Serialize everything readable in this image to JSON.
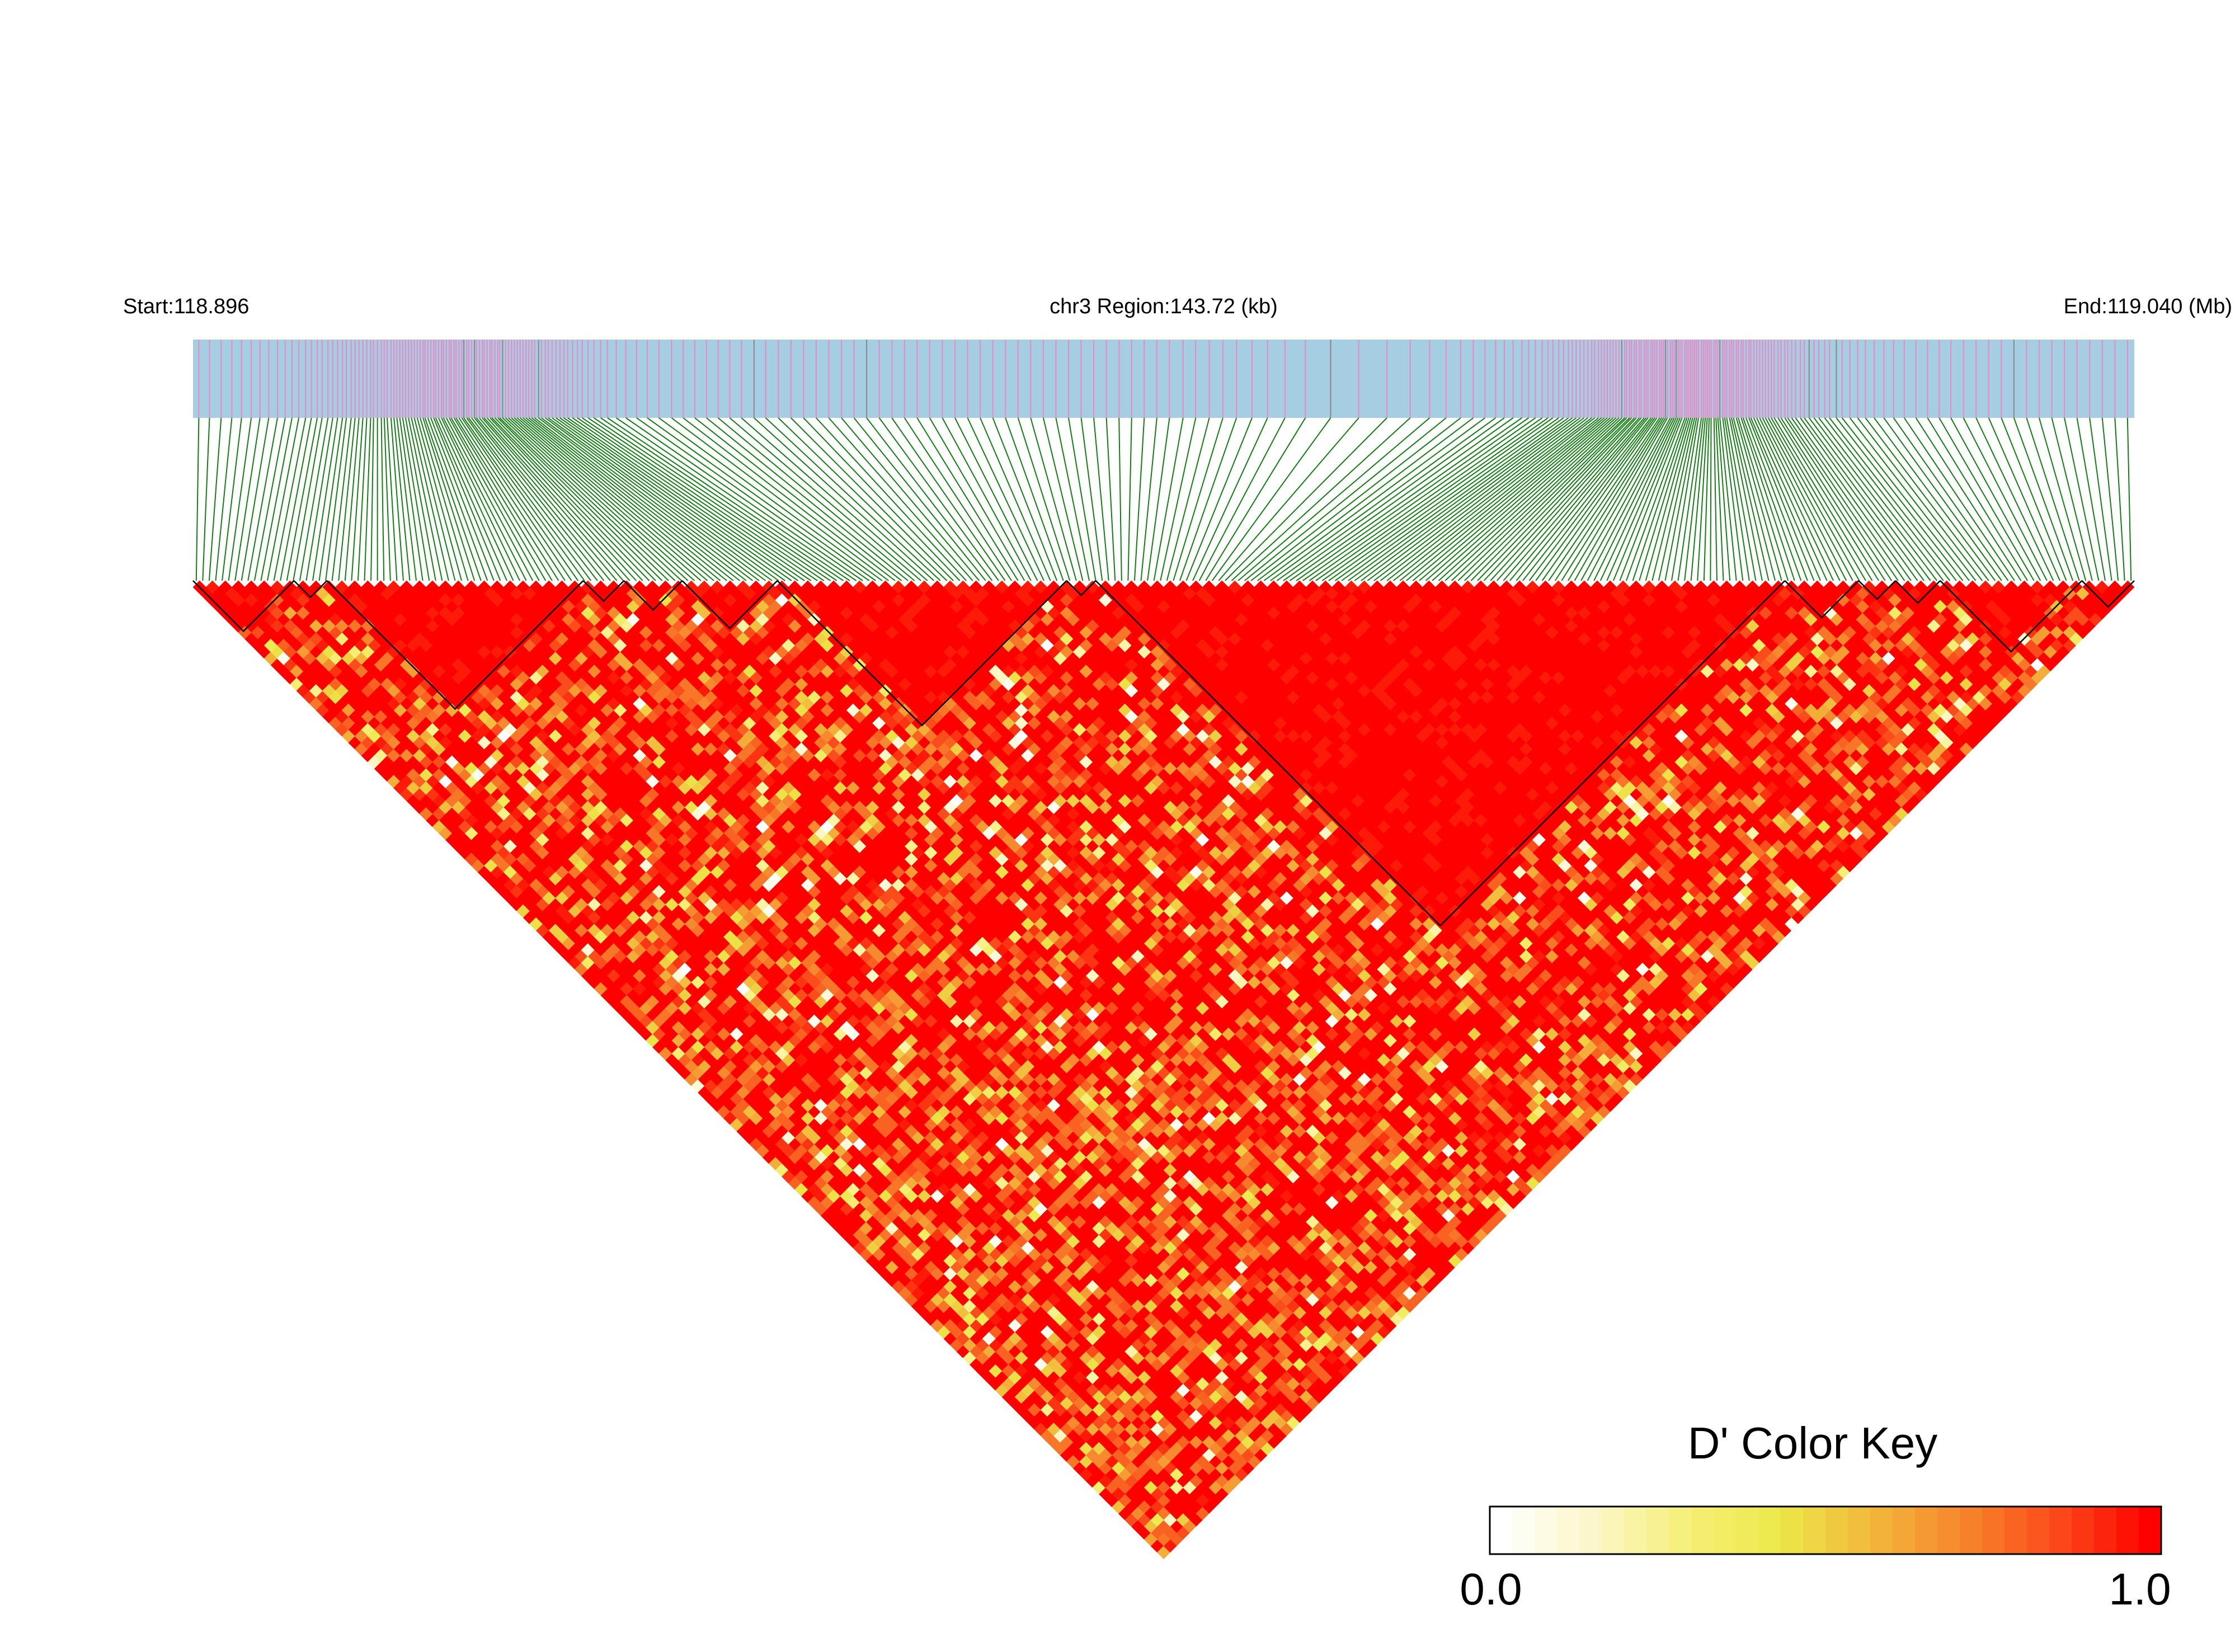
{
  "header": {
    "start_label": "Start:118.896",
    "region_label": "chr3 Region:143.72 (kb)",
    "end_label": "End:119.040 (Mb)"
  },
  "colors": {
    "track_background": "#a6cee3",
    "snp_tick_pink": "#e58cc9",
    "snp_tick_gray": "#8c8c8c",
    "connector_green": "#107f10",
    "ld_high": "#ff0000",
    "ld_mid": "#f08030",
    "ld_low": "#ffff99",
    "ld_zero": "#ffffff",
    "block_outline": "#000000"
  },
  "color_key": {
    "title": "D' Color Key",
    "min_label": "0.0",
    "max_label": "1.0",
    "stops": [
      "#ffffff",
      "#fcf7c8",
      "#f6ef78",
      "#ebe94a",
      "#f2b73c",
      "#f7852c",
      "#fb4a1a",
      "#ff0000"
    ]
  },
  "chart_data": {
    "type": "heatmap",
    "description_stat": "D'",
    "chromosome": "chr3",
    "region_start_mb": 118.896,
    "region_end_mb": 119.04,
    "region_length_kb": 143.72,
    "snp_count_approx": 300,
    "value_range": [
      0.0,
      1.0
    ],
    "ld_blocks_fraction_of_region": [
      [
        0.0,
        0.052
      ],
      [
        0.052,
        0.069
      ],
      [
        0.069,
        0.201
      ],
      [
        0.201,
        0.222
      ],
      [
        0.222,
        0.252
      ],
      [
        0.252,
        0.301
      ],
      [
        0.301,
        0.45
      ],
      [
        0.45,
        0.465
      ],
      [
        0.465,
        0.82
      ],
      [
        0.82,
        0.858
      ],
      [
        0.858,
        0.877
      ],
      [
        0.877,
        0.9
      ],
      [
        0.9,
        0.973
      ],
      [
        0.973,
        1.0
      ]
    ]
  }
}
